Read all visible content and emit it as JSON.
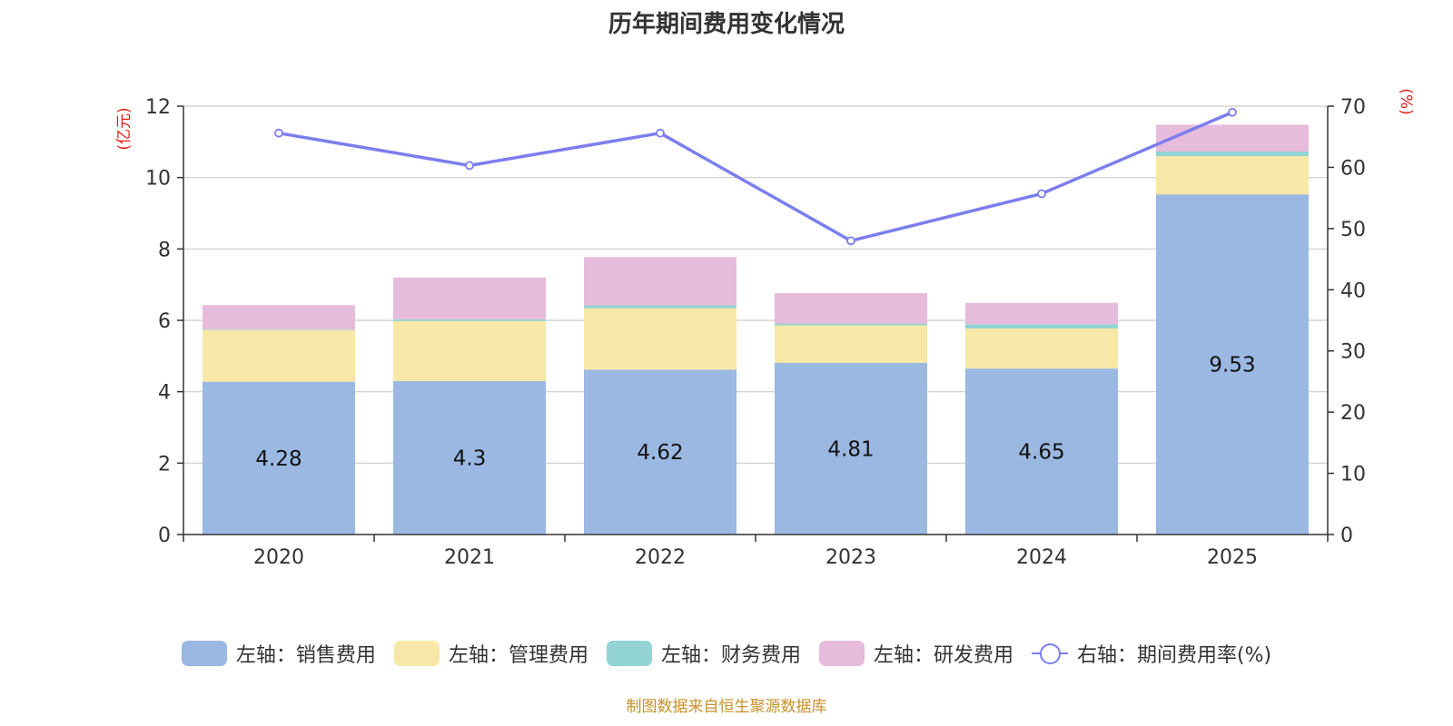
{
  "chart_data": {
    "type": "bar",
    "title": "历年期间费用变化情况",
    "categories": [
      "2020",
      "2021",
      "2022",
      "2023",
      "2024",
      "2025"
    ],
    "series": [
      {
        "name": "左轴：销售费用",
        "axis": "left",
        "color": "#9ab8e2",
        "values": [
          4.28,
          4.3,
          4.62,
          4.81,
          4.65,
          9.53
        ],
        "data_labels": [
          "4.28",
          "4.3",
          "4.62",
          "4.81",
          "4.65",
          "9.53"
        ]
      },
      {
        "name": "左轴：管理费用",
        "axis": "left",
        "color": "#f8e8a8",
        "values": [
          1.45,
          1.68,
          1.72,
          1.05,
          1.12,
          1.07
        ]
      },
      {
        "name": "左轴：财务费用",
        "axis": "left",
        "color": "#92d3d4",
        "values": [
          0.02,
          0.05,
          0.08,
          0.05,
          0.12,
          0.13
        ]
      },
      {
        "name": "左轴：研发费用",
        "axis": "left",
        "color": "#e7bbdb",
        "values": [
          0.68,
          1.17,
          1.35,
          0.85,
          0.6,
          0.75
        ]
      },
      {
        "name": "右轴：期间费用率(%)",
        "axis": "right",
        "type": "line",
        "color": "#7b7eee",
        "values": [
          65.6,
          60.3,
          65.6,
          48.0,
          55.7,
          69.0
        ]
      }
    ],
    "y_left": {
      "label": "(亿元)",
      "range": [
        0,
        12
      ],
      "ticks": [
        0,
        2,
        4,
        6,
        8,
        10,
        12
      ]
    },
    "y_right": {
      "label": "(%)",
      "range": [
        0,
        70
      ],
      "ticks": [
        0,
        10,
        20,
        30,
        40,
        50,
        60,
        70
      ]
    },
    "grid": true,
    "legend_position": "bottom"
  },
  "source_text": "制图数据来自恒生聚源数据库"
}
